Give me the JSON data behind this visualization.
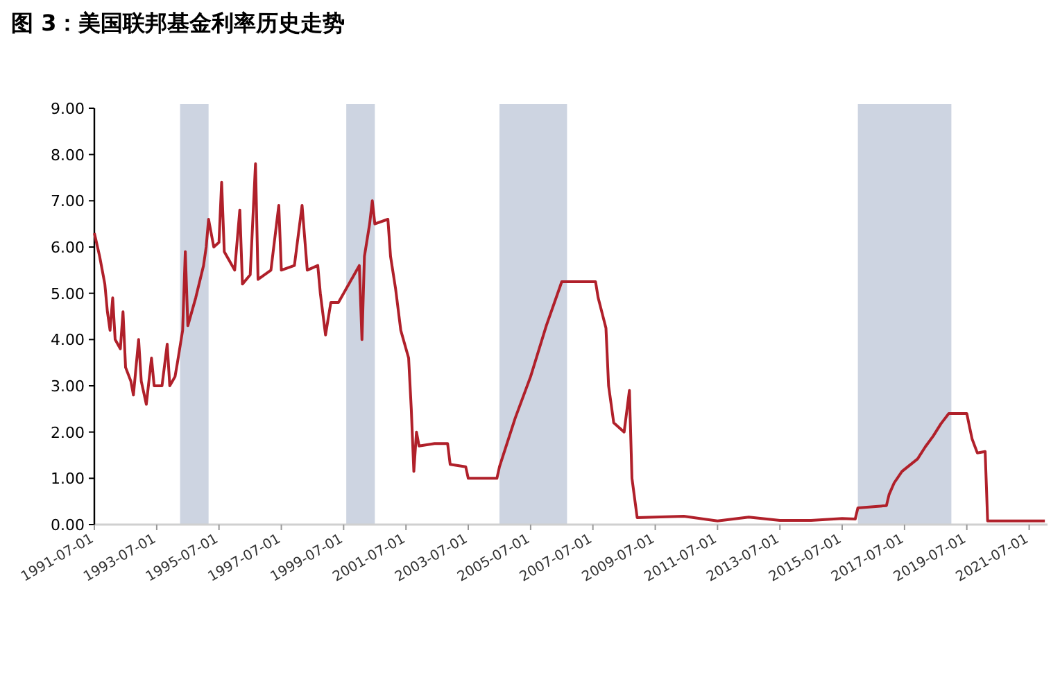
{
  "chart_data": {
    "type": "line",
    "title": "图 3：美国联邦基金利率历史走势",
    "x": [
      "1991-07",
      "1991-09",
      "1991-11",
      "1991-12",
      "1992-01",
      "1992-02",
      "1992-03",
      "1992-05",
      "1992-06",
      "1992-07",
      "1992-09",
      "1992-10",
      "1992-12",
      "1993-01",
      "1993-03",
      "1993-05",
      "1993-06",
      "1993-09",
      "1993-11",
      "1993-12",
      "1994-02",
      "1994-03",
      "1994-05",
      "1994-06",
      "1994-07",
      "1994-10",
      "1995-01",
      "1995-02",
      "1995-03",
      "1995-05",
      "1995-07",
      "1995-08",
      "1995-09",
      "1996-01",
      "1996-03",
      "1996-04",
      "1996-07",
      "1996-09",
      "1996-10",
      "1997-03",
      "1997-06",
      "1997-07",
      "1997-12",
      "1998-03",
      "1998-05",
      "1998-09",
      "1998-10",
      "1998-12",
      "1999-02",
      "1999-05",
      "1999-08",
      "1999-11",
      "2000-01",
      "2000-02",
      "2000-03",
      "2000-05",
      "2000-06",
      "2000-07",
      "2000-12",
      "2001-01",
      "2001-03",
      "2001-05",
      "2001-08",
      "2001-09",
      "2001-10",
      "2001-11",
      "2001-12",
      "2002-06",
      "2002-11",
      "2002-12",
      "2003-06",
      "2003-07",
      "2004-06",
      "2004-07",
      "2005-01",
      "2005-07",
      "2006-01",
      "2006-07",
      "2007-08",
      "2007-09",
      "2007-12",
      "2008-01",
      "2008-03",
      "2008-07",
      "2008-09",
      "2008-10",
      "2008-12",
      "2010-06",
      "2011-07",
      "2012-07",
      "2013-07",
      "2014-07",
      "2015-07",
      "2015-12",
      "2016-01",
      "2016-12",
      "2017-01",
      "2017-03",
      "2017-06",
      "2017-12",
      "2018-03",
      "2018-06",
      "2018-09",
      "2018-12",
      "2019-07",
      "2019-08",
      "2019-09",
      "2019-11",
      "2020-02",
      "2020-03",
      "2021-12",
      "2022-01"
    ],
    "series": [
      {
        "color": "#b0202a",
        "values": [
          6.3,
          5.8,
          5.2,
          4.6,
          4.2,
          4.9,
          4.0,
          3.8,
          4.6,
          3.4,
          3.1,
          2.8,
          4.0,
          3.1,
          2.6,
          3.6,
          3.0,
          3.0,
          3.9,
          3.0,
          3.2,
          3.5,
          4.2,
          5.9,
          4.3,
          4.9,
          5.6,
          6.0,
          6.6,
          6.0,
          6.1,
          7.4,
          5.9,
          5.5,
          6.8,
          5.2,
          5.4,
          7.8,
          5.3,
          5.5,
          6.9,
          5.5,
          5.6,
          6.9,
          5.5,
          5.6,
          5.0,
          4.1,
          4.8,
          4.8,
          5.1,
          5.4,
          5.6,
          4.0,
          5.8,
          6.5,
          7.0,
          6.5,
          6.6,
          5.8,
          5.1,
          4.2,
          3.6,
          2.5,
          1.15,
          2.0,
          1.7,
          1.75,
          1.75,
          1.3,
          1.25,
          1.0,
          1.0,
          1.25,
          2.3,
          3.2,
          4.3,
          5.25,
          5.25,
          4.9,
          4.25,
          3.0,
          2.2,
          2.0,
          2.9,
          1.0,
          0.15,
          0.18,
          0.08,
          0.16,
          0.09,
          0.09,
          0.13,
          0.12,
          0.36,
          0.41,
          0.65,
          0.9,
          1.15,
          1.42,
          1.68,
          1.91,
          2.18,
          2.4,
          2.4,
          2.12,
          1.85,
          1.55,
          1.58,
          0.08,
          0.08,
          0.08
        ]
      }
    ],
    "xlim": [
      "1991-07-01",
      "2022-02-01"
    ],
    "xticks": [
      "1991-07-01",
      "1993-07-01",
      "1995-07-01",
      "1997-07-01",
      "1999-07-01",
      "2001-07-01",
      "2003-07-01",
      "2005-07-01",
      "2007-07-01",
      "2009-07-01",
      "2011-07-01",
      "2013-07-01",
      "2015-07-01",
      "2017-07-01",
      "2019-07-01",
      "2021-07-01"
    ],
    "ylim": [
      0,
      9
    ],
    "yticks": [
      {
        "value": 0,
        "label": "0.00"
      },
      {
        "value": 1,
        "label": "1.00"
      },
      {
        "value": 2,
        "label": "2.00"
      },
      {
        "value": 3,
        "label": "3.00"
      },
      {
        "value": 4,
        "label": "4.00"
      },
      {
        "value": 5,
        "label": "5.00"
      },
      {
        "value": 6,
        "label": "6.00"
      },
      {
        "value": 7,
        "label": "7.00"
      },
      {
        "value": 8,
        "label": "8.00"
      },
      {
        "value": 9,
        "label": "9.00"
      }
    ],
    "bands": [
      {
        "axis": "x",
        "from": "1994-04",
        "to": "1995-03",
        "color": "#cdd4e1"
      },
      {
        "axis": "x",
        "from": "1999-08",
        "to": "2000-07",
        "color": "#cdd4e1"
      },
      {
        "axis": "x",
        "from": "2004-07",
        "to": "2006-09",
        "color": "#cdd4e1"
      },
      {
        "axis": "x",
        "from": "2016-01",
        "to": "2019-01",
        "color": "#cdd4e1"
      }
    ],
    "grid": false,
    "marker": "none",
    "line_style": "solid"
  }
}
